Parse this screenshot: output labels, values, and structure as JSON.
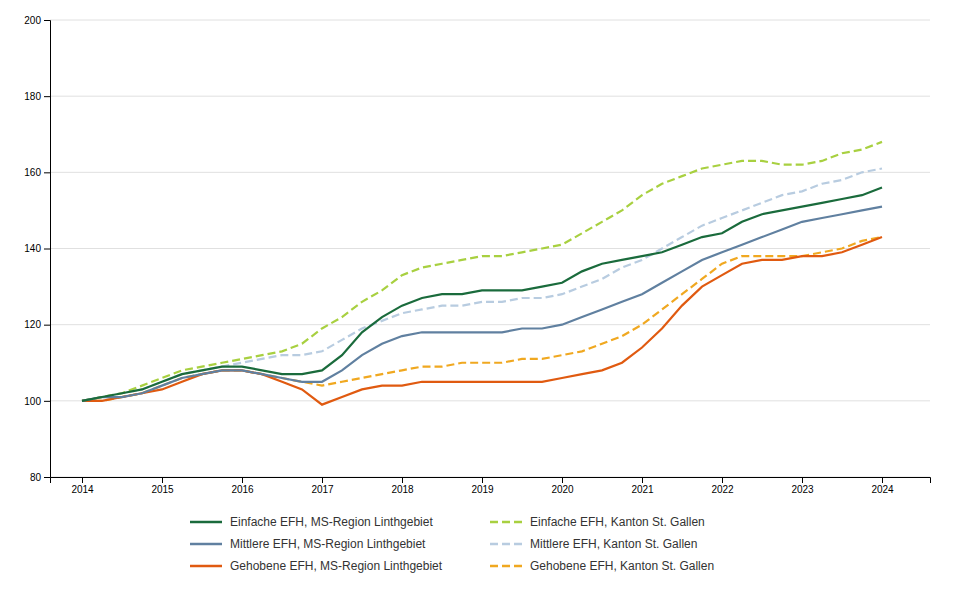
{
  "chart_data": {
    "type": "line",
    "x": [
      2014.0,
      2014.25,
      2014.5,
      2014.75,
      2015.0,
      2015.25,
      2015.5,
      2015.75,
      2016.0,
      2016.25,
      2016.5,
      2016.75,
      2017.0,
      2017.25,
      2017.5,
      2017.75,
      2018.0,
      2018.25,
      2018.5,
      2018.75,
      2019.0,
      2019.25,
      2019.5,
      2019.75,
      2020.0,
      2020.25,
      2020.5,
      2020.75,
      2021.0,
      2021.25,
      2021.5,
      2021.75,
      2022.0,
      2022.25,
      2022.5,
      2022.75,
      2023.0,
      2023.25,
      2023.5,
      2023.75,
      2024.0
    ],
    "series": [
      {
        "name": "Einfache EFH, MS-Region Linthgebiet",
        "color": "#1a6b3c",
        "line_style": "solid",
        "values": [
          100,
          101,
          102,
          103,
          105,
          107,
          108,
          109,
          109,
          108,
          107,
          107,
          108,
          112,
          118,
          122,
          125,
          127,
          128,
          128,
          129,
          129,
          129,
          130,
          131,
          134,
          136,
          137,
          138,
          139,
          141,
          143,
          144,
          147,
          149,
          150,
          151,
          152,
          153,
          154,
          156
        ]
      },
      {
        "name": "Einfache EFH, Kanton St. Gallen",
        "color": "#a8d040",
        "line_style": "dashed",
        "values": [
          100,
          101,
          102,
          104,
          106,
          108,
          109,
          110,
          111,
          112,
          113,
          115,
          119,
          122,
          126,
          129,
          133,
          135,
          136,
          137,
          138,
          138,
          139,
          140,
          141,
          144,
          147,
          150,
          154,
          157,
          159,
          161,
          162,
          163,
          163,
          162,
          162,
          163,
          165,
          166,
          168
        ]
      },
      {
        "name": "Mittlere EFH, MS-Region Linthgebiet",
        "color": "#6080a0",
        "line_style": "solid",
        "values": [
          100,
          101,
          101,
          102,
          104,
          106,
          107,
          108,
          108,
          107,
          106,
          105,
          105,
          108,
          112,
          115,
          117,
          118,
          118,
          118,
          118,
          118,
          119,
          119,
          120,
          122,
          124,
          126,
          128,
          131,
          134,
          137,
          139,
          141,
          143,
          145,
          147,
          148,
          149,
          150,
          151
        ]
      },
      {
        "name": "Mittlere EFH, Kanton St. Gallen",
        "color": "#b8cce0",
        "line_style": "dashed",
        "values": [
          100,
          101,
          102,
          103,
          105,
          107,
          108,
          109,
          110,
          111,
          112,
          112,
          113,
          116,
          119,
          121,
          123,
          124,
          125,
          125,
          126,
          126,
          127,
          127,
          128,
          130,
          132,
          135,
          137,
          140,
          143,
          146,
          148,
          150,
          152,
          154,
          155,
          157,
          158,
          160,
          161
        ]
      },
      {
        "name": "Gehobene EFH, MS-Region Linthgebiet",
        "color": "#e05a10",
        "line_style": "solid",
        "values": [
          100,
          100,
          101,
          102,
          103,
          105,
          107,
          108,
          108,
          107,
          105,
          103,
          99,
          101,
          103,
          104,
          104,
          105,
          105,
          105,
          105,
          105,
          105,
          105,
          106,
          107,
          108,
          110,
          114,
          119,
          125,
          130,
          133,
          136,
          137,
          137,
          138,
          138,
          139,
          141,
          143
        ]
      },
      {
        "name": "Gehobene EFH, Kanton St. Gallen",
        "color": "#f0a820",
        "line_style": "dashed",
        "values": [
          100,
          100,
          101,
          102,
          104,
          106,
          107,
          108,
          108,
          107,
          106,
          105,
          104,
          105,
          106,
          107,
          108,
          109,
          109,
          110,
          110,
          110,
          111,
          111,
          112,
          113,
          115,
          117,
          120,
          124,
          128,
          132,
          136,
          138,
          138,
          138,
          138,
          139,
          140,
          142,
          143
        ]
      }
    ],
    "xlim": [
      2013.6,
      2024.6
    ],
    "xticks": [
      2014,
      2015,
      2016,
      2017,
      2018,
      2019,
      2020,
      2021,
      2022,
      2023,
      2024
    ],
    "ylim": [
      80,
      200
    ],
    "yticks": [
      80,
      100,
      120,
      140,
      160,
      180,
      200
    ],
    "grid": true,
    "legend": "bottom"
  }
}
